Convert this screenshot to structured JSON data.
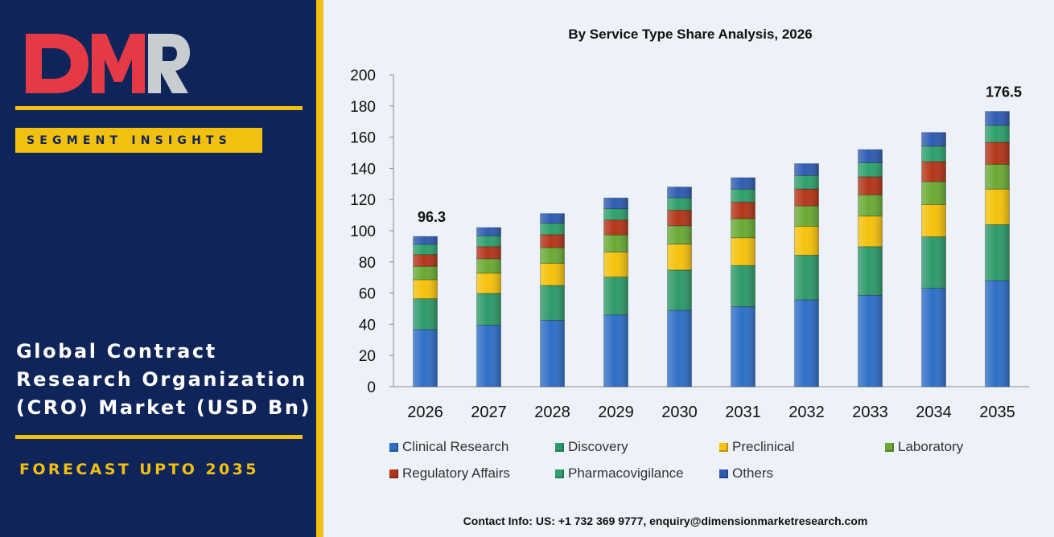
{
  "brand": {
    "logo_text": "DMR",
    "colors": {
      "navy": "#0f2459",
      "gold": "#f2c10f",
      "logo_red": "#e63946",
      "logo_gray": "#c8cdd0"
    }
  },
  "sidebar": {
    "segment_label": "SEGMENT INSIGHTS",
    "market_title_lines": [
      "Global Contract",
      "Research Organization",
      "(CRO) Market (USD Bn)"
    ],
    "forecast_label": "FORECAST UPTO 2035"
  },
  "contact": "Contact Info: US: +1 732 369 9777, enquiry@dimensionmarketresearch.com",
  "chart_data": {
    "type": "bar",
    "stacked": true,
    "title": "By Service Type Share Analysis, 2026",
    "xlabel": "",
    "ylabel": "",
    "ylim": [
      0,
      200
    ],
    "yticks": [
      0,
      20,
      40,
      60,
      80,
      100,
      120,
      140,
      160,
      180,
      200
    ],
    "grid": false,
    "legend_position": "bottom",
    "categories": [
      "2026",
      "2027",
      "2028",
      "2029",
      "2030",
      "2031",
      "2032",
      "2033",
      "2034",
      "2035"
    ],
    "series": [
      {
        "name": "Clinical Research",
        "color": "#2f6fc7",
        "values": [
          36.6,
          39.5,
          42.6,
          46.0,
          49.0,
          51.3,
          55.7,
          58.6,
          63.1,
          68.0
        ]
      },
      {
        "name": "Discovery",
        "color": "#2e9a6a",
        "values": [
          19.8,
          20.3,
          22.3,
          24.3,
          25.8,
          26.4,
          28.6,
          31.2,
          33.0,
          35.9
        ]
      },
      {
        "name": "Preclinical",
        "color": "#f5c20c",
        "values": [
          12.2,
          13.0,
          14.2,
          16.0,
          16.6,
          17.8,
          18.6,
          19.6,
          20.7,
          22.8
        ]
      },
      {
        "name": "Laboratory",
        "color": "#6aaa35",
        "values": [
          8.6,
          9.2,
          10.0,
          11.0,
          11.8,
          12.2,
          13.0,
          13.6,
          14.7,
          15.9
        ]
      },
      {
        "name": "Regulatory Affairs",
        "color": "#b3361a",
        "values": [
          7.5,
          7.8,
          8.4,
          9.6,
          10.0,
          10.7,
          10.9,
          11.6,
          12.8,
          14.1
        ]
      },
      {
        "name": "Pharmacovigilance",
        "color": "#2ea06c",
        "values": [
          6.6,
          6.9,
          7.2,
          7.2,
          7.9,
          8.3,
          8.6,
          9.0,
          9.9,
          10.8
        ]
      },
      {
        "name": "Others",
        "color": "#2f5cb2",
        "values": [
          5.0,
          5.3,
          6.3,
          6.9,
          6.9,
          7.3,
          7.6,
          8.4,
          8.8,
          9.0
        ]
      }
    ],
    "annotations": [
      {
        "category": "2026",
        "text": "96.3"
      },
      {
        "category": "2035",
        "text": "176.5"
      }
    ]
  }
}
